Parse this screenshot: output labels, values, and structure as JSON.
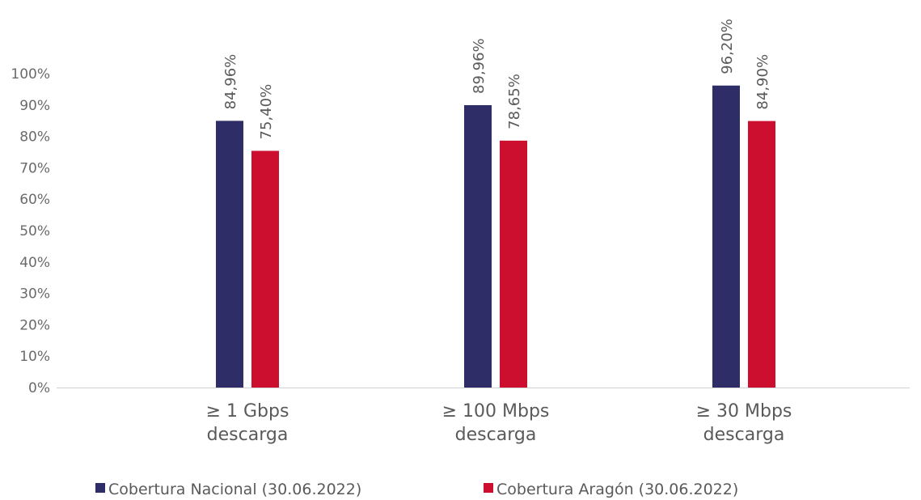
{
  "chart_data": {
    "type": "bar",
    "title": "",
    "xlabel": "",
    "ylabel": "",
    "ylim": [
      0,
      100
    ],
    "yticks": [
      "0%",
      "10%",
      "20%",
      "30%",
      "40%",
      "50%",
      "60%",
      "70%",
      "80%",
      "90%",
      "100%"
    ],
    "categories": [
      [
        "≥ 1 Gbps",
        "descarga"
      ],
      [
        "≥ 100 Mbps",
        "descarga"
      ],
      [
        "≥ 30 Mbps",
        "descarga"
      ]
    ],
    "series": [
      {
        "name": "Cobertura Nacional (30.06.2022)",
        "color": "#2e2d68",
        "values": [
          84.96,
          89.96,
          96.2
        ],
        "labels": [
          "84,96%",
          "89,96%",
          "96,20%"
        ]
      },
      {
        "name": "Cobertura Aragón (30.06.2022)",
        "color": "#cc0e2f",
        "values": [
          75.4,
          78.65,
          84.9
        ],
        "labels": [
          "75,40%",
          "78,65%",
          "84,90%"
        ]
      }
    ],
    "grid": false,
    "legend": "bottom"
  }
}
